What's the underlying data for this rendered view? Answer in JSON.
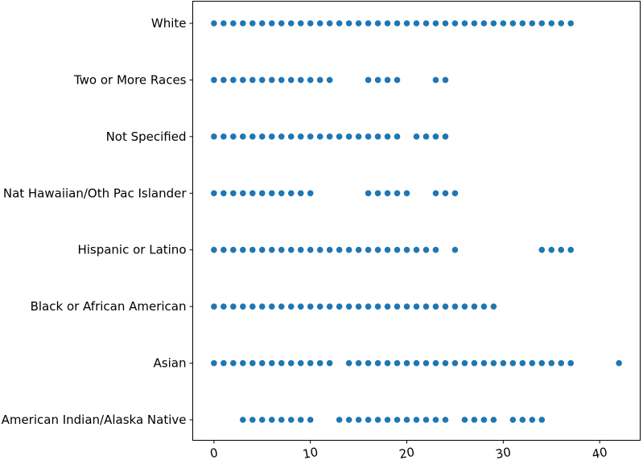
{
  "chart_data": {
    "type": "scatter",
    "title": "",
    "xlabel": "",
    "ylabel": "",
    "xlim": [
      -2.2,
      44.2
    ],
    "x_ticks": [
      0,
      10,
      20,
      30,
      40
    ],
    "x_tick_rotation_deg": -10,
    "grid": false,
    "legend": "none",
    "marker_color": "#1f77b4",
    "categories": [
      "American Indian/Alaska Native",
      "Asian",
      "Black or African American",
      "Hispanic or Latino",
      "Nat Hawaiian/Oth Pac Islander",
      "Not Specified",
      "Two or More Races",
      "White"
    ],
    "points": [
      {
        "category": "White",
        "x": [
          0,
          1,
          2,
          3,
          4,
          5,
          6,
          7,
          8,
          9,
          10,
          11,
          12,
          13,
          14,
          15,
          16,
          17,
          18,
          19,
          20,
          21,
          22,
          23,
          24,
          25,
          26,
          27,
          28,
          29,
          30,
          31,
          32,
          33,
          34,
          35,
          36,
          37
        ]
      },
      {
        "category": "Two or More Races",
        "x": [
          0,
          1,
          2,
          3,
          4,
          5,
          6,
          7,
          8,
          9,
          10,
          11,
          12,
          16,
          17,
          18,
          19,
          23,
          24
        ]
      },
      {
        "category": "Not Specified",
        "x": [
          0,
          1,
          2,
          3,
          4,
          5,
          6,
          7,
          8,
          9,
          10,
          11,
          12,
          13,
          14,
          15,
          16,
          17,
          18,
          19,
          21,
          22,
          23,
          24
        ]
      },
      {
        "category": "Nat Hawaiian/Oth Pac Islander",
        "x": [
          0,
          1,
          2,
          3,
          4,
          5,
          6,
          7,
          8,
          9,
          10,
          16,
          17,
          18,
          19,
          20,
          23,
          24,
          25
        ]
      },
      {
        "category": "Hispanic or Latino",
        "x": [
          0,
          1,
          2,
          3,
          4,
          5,
          6,
          7,
          8,
          9,
          10,
          11,
          12,
          13,
          14,
          15,
          16,
          17,
          18,
          19,
          20,
          21,
          22,
          23,
          25,
          34,
          35,
          36,
          37
        ]
      },
      {
        "category": "Black or African American",
        "x": [
          0,
          1,
          2,
          3,
          4,
          5,
          6,
          7,
          8,
          9,
          10,
          11,
          12,
          13,
          14,
          15,
          16,
          17,
          18,
          19,
          20,
          21,
          22,
          23,
          24,
          25,
          26,
          27,
          28,
          29
        ]
      },
      {
        "category": "Asian",
        "x": [
          0,
          1,
          2,
          3,
          4,
          5,
          6,
          7,
          8,
          9,
          10,
          11,
          12,
          14,
          15,
          16,
          17,
          18,
          19,
          20,
          21,
          22,
          23,
          24,
          25,
          26,
          27,
          28,
          29,
          30,
          31,
          32,
          33,
          34,
          35,
          36,
          37,
          42
        ]
      },
      {
        "category": "American Indian/Alaska Native",
        "x": [
          3,
          4,
          5,
          6,
          7,
          8,
          9,
          10,
          13,
          14,
          15,
          16,
          17,
          18,
          19,
          20,
          21,
          22,
          23,
          24,
          26,
          27,
          28,
          29,
          31,
          32,
          33,
          34
        ]
      }
    ]
  }
}
